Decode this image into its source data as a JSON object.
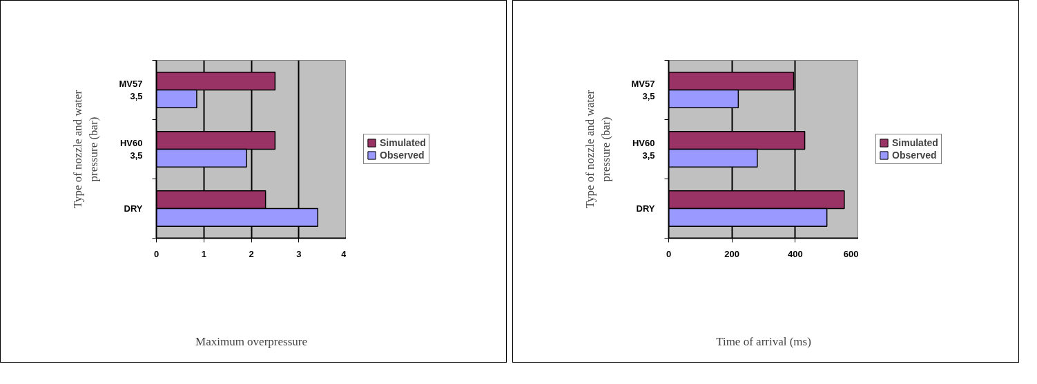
{
  "chart_data": [
    {
      "type": "bar",
      "orientation": "horizontal",
      "xlabel": "Maximum overpressure",
      "ylabel": "Type of nozzle and water pressure (bar)",
      "categories": [
        "MV57 3,5",
        "HV60 3,5",
        "DRY"
      ],
      "series": [
        {
          "name": "Simulated",
          "color": "#993366",
          "values": [
            2.5,
            2.5,
            2.3
          ]
        },
        {
          "name": "Observed",
          "color": "#9999ff",
          "values": [
            0.85,
            1.9,
            3.4
          ]
        }
      ],
      "xlim": [
        0,
        4
      ],
      "xticks": [
        0,
        1,
        2,
        3,
        4
      ],
      "grid": "x",
      "legend": "right"
    },
    {
      "type": "bar",
      "orientation": "horizontal",
      "xlabel": "Time of arrival (ms)",
      "ylabel": "Type of nozzle and water pressure (bar)",
      "categories": [
        "MV57 3,5",
        "HV60 3,5",
        "DRY"
      ],
      "series": [
        {
          "name": "Simulated",
          "color": "#993366",
          "values": [
            395,
            430,
            555
          ]
        },
        {
          "name": "Observed",
          "color": "#9999ff",
          "values": [
            220,
            280,
            500
          ]
        }
      ],
      "xlim": [
        0,
        600
      ],
      "xticks": [
        0,
        200,
        400,
        600
      ],
      "grid": "x",
      "legend": "right"
    }
  ]
}
